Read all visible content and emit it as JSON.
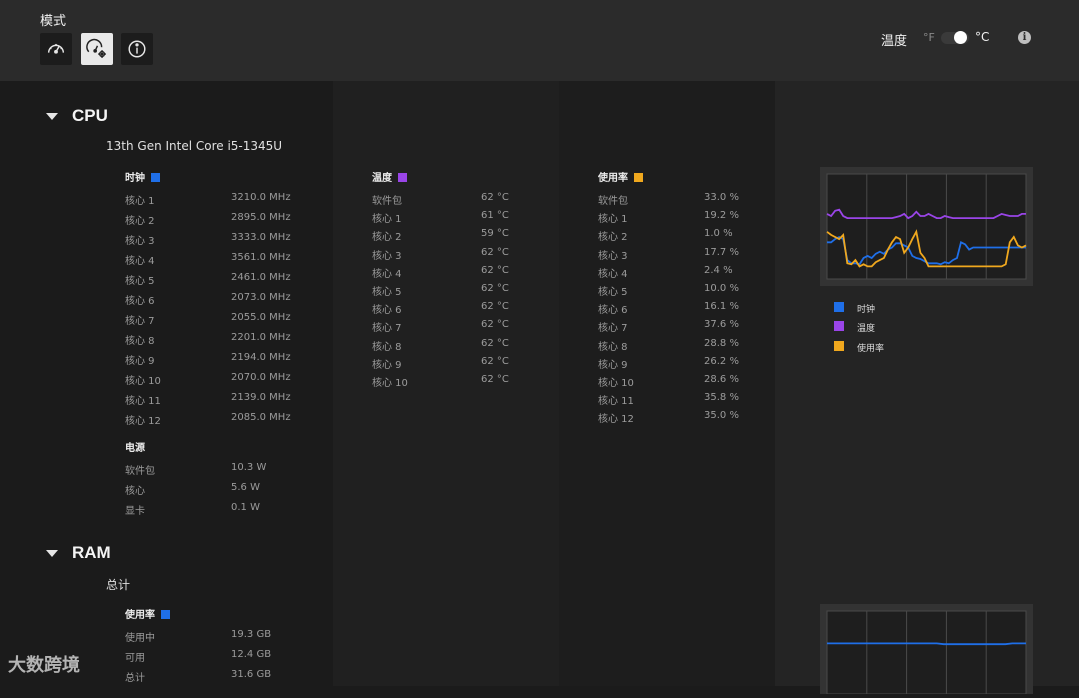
{
  "header": {
    "mode_title": "模式",
    "temperature_label": "温度",
    "unit_f": "°F",
    "unit_c": "°C",
    "selected_unit": "°C",
    "info_glyph": "i"
  },
  "colors": {
    "clock": "#1f6fe8",
    "temperature": "#9a45e8",
    "usage": "#f0a81e",
    "header_bg": "#2b2b2b",
    "page_bg": "#1b1b1b"
  },
  "cpu": {
    "section_title": "CPU",
    "device_name": "13th Gen Intel Core i5-1345U",
    "clock": {
      "header": "时钟",
      "rows": [
        {
          "label": "核心 1",
          "value": "3210.0 MHz"
        },
        {
          "label": "核心 2",
          "value": "2895.0 MHz"
        },
        {
          "label": "核心 3",
          "value": "3333.0 MHz"
        },
        {
          "label": "核心 4",
          "value": "3561.0 MHz"
        },
        {
          "label": "核心 5",
          "value": "2461.0 MHz"
        },
        {
          "label": "核心 6",
          "value": "2073.0 MHz"
        },
        {
          "label": "核心 7",
          "value": "2055.0 MHz"
        },
        {
          "label": "核心 8",
          "value": "2201.0 MHz"
        },
        {
          "label": "核心 9",
          "value": "2194.0 MHz"
        },
        {
          "label": "核心 10",
          "value": "2070.0 MHz"
        },
        {
          "label": "核心 11",
          "value": "2139.0 MHz"
        },
        {
          "label": "核心 12",
          "value": "2085.0 MHz"
        }
      ]
    },
    "power": {
      "header": "电源",
      "rows": [
        {
          "label": "软件包",
          "value": "10.3 W"
        },
        {
          "label": "核心",
          "value": "5.6 W"
        },
        {
          "label": "显卡",
          "value": "0.1 W"
        }
      ]
    },
    "temperature": {
      "header": "温度",
      "rows": [
        {
          "label": "软件包",
          "value": "62 °C"
        },
        {
          "label": "核心 1",
          "value": "61 °C"
        },
        {
          "label": "核心 2",
          "value": "59 °C"
        },
        {
          "label": "核心 3",
          "value": "62 °C"
        },
        {
          "label": "核心 4",
          "value": "62 °C"
        },
        {
          "label": "核心 5",
          "value": "62 °C"
        },
        {
          "label": "核心 6",
          "value": "62 °C"
        },
        {
          "label": "核心 7",
          "value": "62 °C"
        },
        {
          "label": "核心 8",
          "value": "62 °C"
        },
        {
          "label": "核心 9",
          "value": "62 °C"
        },
        {
          "label": "核心 10",
          "value": "62 °C"
        }
      ]
    },
    "usage": {
      "header": "使用率",
      "rows": [
        {
          "label": "软件包",
          "value": "33.0 %"
        },
        {
          "label": "核心 1",
          "value": "19.2 %"
        },
        {
          "label": "核心 2",
          "value": "1.0 %"
        },
        {
          "label": "核心 3",
          "value": "17.7 %"
        },
        {
          "label": "核心 4",
          "value": "2.4 %"
        },
        {
          "label": "核心 5",
          "value": "10.0 %"
        },
        {
          "label": "核心 6",
          "value": "16.1 %"
        },
        {
          "label": "核心 7",
          "value": "37.6 %"
        },
        {
          "label": "核心 8",
          "value": "28.8 %"
        },
        {
          "label": "核心 9",
          "value": "26.2 %"
        },
        {
          "label": "核心 10",
          "value": "28.6 %"
        },
        {
          "label": "核心 11",
          "value": "35.8 %"
        },
        {
          "label": "核心 12",
          "value": "35.0 %"
        }
      ]
    },
    "legend": [
      "时钟",
      "温度",
      "使用率"
    ]
  },
  "ram": {
    "section_title": "RAM",
    "device_name": "总计",
    "usage": {
      "header": "使用率",
      "rows": [
        {
          "label": "使用中",
          "value": "19.3 GB"
        },
        {
          "label": "可用",
          "value": "12.4 GB"
        },
        {
          "label": "总计",
          "value": "31.6 GB"
        }
      ]
    }
  },
  "watermark": "大数跨境",
  "chart_data": [
    {
      "type": "line",
      "grid": true,
      "legend_position": "below",
      "x": [
        0,
        1,
        2,
        3,
        4,
        5,
        6,
        7,
        8,
        9,
        10,
        11,
        12,
        13,
        14,
        15,
        16,
        17,
        18,
        19,
        20,
        21,
        22,
        23,
        24,
        25,
        26,
        27,
        28,
        29,
        30,
        31,
        32,
        33,
        34,
        35,
        36,
        37,
        38,
        39,
        40,
        41,
        42,
        43,
        44,
        45,
        46,
        47,
        48,
        49
      ],
      "ylim": [
        0,
        100
      ],
      "series": [
        {
          "name": "时钟",
          "color": "#1f6fe8",
          "values": [
            35,
            35,
            38,
            40,
            38,
            18,
            15,
            15,
            14,
            20,
            22,
            20,
            24,
            26,
            24,
            28,
            30,
            34,
            34,
            32,
            30,
            22,
            20,
            19,
            17,
            15,
            15,
            15,
            14,
            16,
            15,
            18,
            20,
            35,
            33,
            28,
            30,
            30,
            30,
            30,
            30,
            30,
            30,
            30,
            30,
            30,
            30,
            30,
            30,
            30
          ]
        },
        {
          "name": "温度",
          "color": "#9a45e8",
          "values": [
            62,
            60,
            65,
            66,
            60,
            58,
            58,
            58,
            58,
            58,
            58,
            58,
            58,
            58,
            58,
            58,
            58,
            59,
            60,
            62,
            58,
            60,
            64,
            60,
            60,
            62,
            60,
            58,
            58,
            60,
            59,
            58,
            58,
            58,
            58,
            58,
            58,
            58,
            58,
            58,
            58,
            58,
            60,
            62,
            61,
            60,
            60,
            60,
            62,
            62
          ]
        },
        {
          "name": "使用率",
          "color": "#f0a81e",
          "values": [
            45,
            42,
            40,
            38,
            42,
            15,
            14,
            18,
            12,
            14,
            12,
            12,
            16,
            18,
            20,
            28,
            35,
            40,
            38,
            25,
            30,
            38,
            45,
            25,
            20,
            12,
            12,
            12,
            12,
            12,
            12,
            12,
            12,
            12,
            12,
            12,
            12,
            12,
            12,
            12,
            12,
            12,
            12,
            12,
            14,
            35,
            40,
            32,
            30,
            32
          ]
        }
      ]
    },
    {
      "type": "line",
      "grid": true,
      "x": [
        0,
        1,
        2,
        3,
        4,
        5,
        6,
        7,
        8,
        9,
        10,
        11,
        12,
        13,
        14,
        15,
        16,
        17,
        18,
        19,
        20,
        21,
        22,
        23,
        24,
        25,
        26,
        27,
        28,
        29
      ],
      "ylim": [
        0,
        100
      ],
      "series": [
        {
          "name": "使用率",
          "color": "#1f6fe8",
          "values": [
            61,
            61,
            61,
            61,
            61,
            61,
            61,
            61,
            61,
            61,
            61,
            61,
            61,
            61,
            61,
            61,
            61,
            60,
            60,
            60,
            60,
            60,
            60,
            60,
            60,
            60,
            60,
            61,
            61,
            61
          ]
        }
      ]
    }
  ]
}
